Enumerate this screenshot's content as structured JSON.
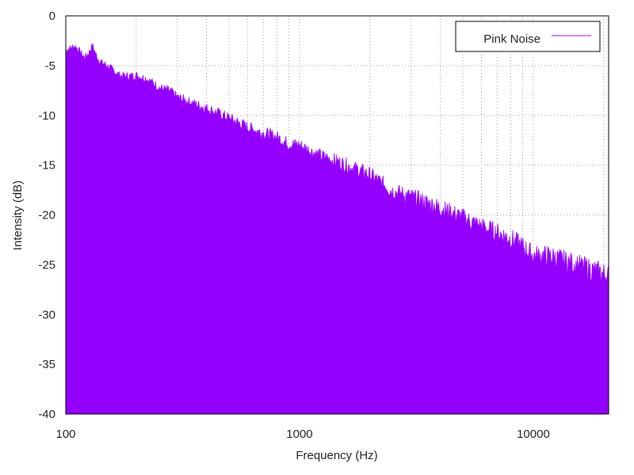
{
  "chart_data": {
    "type": "area",
    "xlabel": "Frequency (Hz)",
    "ylabel": "Intensity (dB)",
    "xscale": "log",
    "xlim": [
      100,
      21000
    ],
    "ylim": [
      -40,
      0
    ],
    "x_ticks": [
      100,
      1000,
      10000
    ],
    "x_tick_labels": [
      "100",
      "1000",
      "10000"
    ],
    "y_ticks": [
      0,
      -5,
      -10,
      -15,
      -20,
      -25,
      -30,
      -35,
      -40
    ],
    "y_tick_labels": [
      "0",
      "-5",
      "-10",
      "-15",
      "-20",
      "-25",
      "-30",
      "-35",
      "-40"
    ],
    "grid": true,
    "legend_position": "top-right",
    "series": [
      {
        "name": "Pink Noise",
        "color": "#9400ff",
        "x": [
          100,
          105,
          110,
          115,
          120,
          125,
          130,
          135,
          140,
          150,
          160,
          170,
          180,
          200,
          220,
          250,
          280,
          300,
          350,
          400,
          500,
          600,
          700,
          800,
          900,
          1000,
          1200,
          1500,
          2000,
          2500,
          3000,
          4000,
          5000,
          6000,
          7000,
          8000,
          9000,
          10000,
          12000,
          15000,
          18000,
          21000
        ],
        "values": [
          -3.5,
          -3.2,
          -3.1,
          -3.6,
          -4.2,
          -3.8,
          -3.0,
          -4.0,
          -4.6,
          -5.0,
          -5.5,
          -6.0,
          -6.1,
          -6.0,
          -6.3,
          -7.2,
          -7.6,
          -8.2,
          -8.8,
          -9.3,
          -10.3,
          -11.2,
          -11.8,
          -12.2,
          -12.9,
          -13.0,
          -14.0,
          -14.8,
          -16.0,
          -17.6,
          -18.2,
          -19.3,
          -20.3,
          -21.2,
          -21.8,
          -22.4,
          -23.2,
          -24.1,
          -24.2,
          -25.0,
          -25.6,
          -26.1
        ]
      }
    ]
  }
}
